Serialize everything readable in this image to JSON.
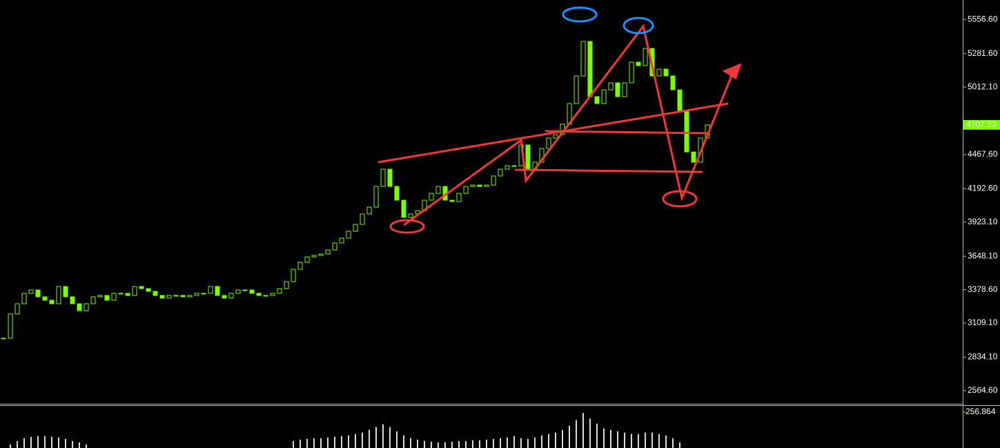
{
  "chart_data": [
    {
      "type": "candlestick",
      "close": [
        2987,
        3182,
        3265,
        3349,
        3376,
        3321,
        3293,
        3265,
        3404,
        3321,
        3265,
        3209,
        3265,
        3321,
        3332,
        3293,
        3349,
        3349,
        3332,
        3404,
        3387,
        3365,
        3332,
        3310,
        3332,
        3332,
        3321,
        3332,
        3349,
        3349,
        3404,
        3332,
        3310,
        3349,
        3376,
        3376,
        3349,
        3332,
        3332,
        3349,
        3387,
        3443,
        3543,
        3599,
        3643,
        3655,
        3666,
        3699,
        3755,
        3794,
        3849,
        3905,
        3989,
        4044,
        4211,
        4350,
        4211,
        4100,
        3961,
        3989,
        4016,
        4100,
        4155,
        4211,
        4100,
        4089,
        4155,
        4211,
        4222,
        4211,
        4222,
        4295,
        4350,
        4378,
        4378,
        4545,
        4350,
        4406,
        4517,
        4601,
        4628,
        4712,
        4879,
        5102,
        5380,
        4935,
        4879,
        4990,
        5046,
        4935,
        5046,
        5213,
        5185,
        5324,
        5102,
        5157,
        5102,
        4990,
        4823,
        4489,
        4406,
        4601,
        4707
      ],
      "up_color": "#000000",
      "down_color": "#7cfc00",
      "line_color": "#7cfc00",
      "ylim": [
        2458,
        5714
      ],
      "yticks": [
        {
          "value": 2564.6,
          "label": "2564.60"
        },
        {
          "value": 2834.1,
          "label": "2834.10"
        },
        {
          "value": 3109.1,
          "label": "3109.10"
        },
        {
          "value": 3378.6,
          "label": "3378.60"
        },
        {
          "value": 3648.1,
          "label": "3648.10"
        },
        {
          "value": 3923.1,
          "label": "3923.10"
        },
        {
          "value": 4192.6,
          "label": "4192.60"
        },
        {
          "value": 4467.6,
          "label": "4467.60"
        },
        {
          "value": 5012.1,
          "label": "5012.10"
        },
        {
          "value": 5281.6,
          "label": "5281.60"
        },
        {
          "value": 5556.6,
          "label": "5556.60"
        }
      ],
      "last_price": 4707.23
    },
    {
      "type": "bar",
      "values": [
        0,
        25,
        50,
        70,
        80,
        85,
        85,
        80,
        75,
        65,
        50,
        40,
        25,
        0,
        0,
        0,
        0,
        0,
        0,
        0,
        0,
        0,
        0,
        0,
        0,
        0,
        0,
        0,
        0,
        0,
        0,
        0,
        0,
        0,
        0,
        0,
        0,
        0,
        0,
        0,
        0,
        0,
        50,
        60,
        65,
        70,
        70,
        75,
        80,
        85,
        90,
        100,
        110,
        130,
        150,
        170,
        150,
        120,
        90,
        70,
        60,
        50,
        45,
        40,
        40,
        45,
        50,
        50,
        55,
        55,
        60,
        65,
        70,
        75,
        85,
        70,
        65,
        75,
        90,
        100,
        110,
        130,
        160,
        200,
        250,
        210,
        175,
        140,
        130,
        120,
        110,
        100,
        100,
        110,
        110,
        100,
        90,
        70,
        40,
        0,
        0,
        0,
        0
      ],
      "color": "#dddddd",
      "ylim": [
        0,
        306
      ],
      "yticks": [
        {
          "value": 256.864,
          "label": "256.864"
        }
      ]
    }
  ]
}
